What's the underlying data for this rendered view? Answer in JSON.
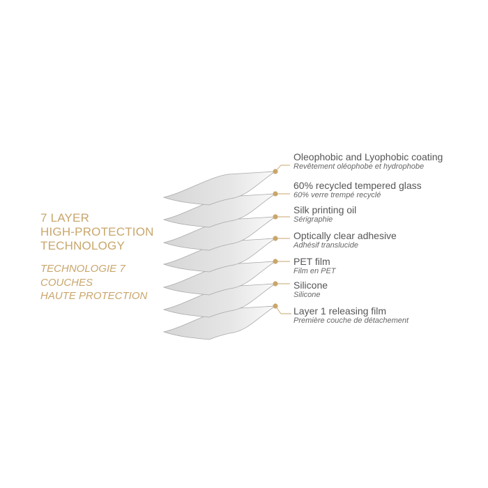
{
  "heading": {
    "title_lines": [
      "7 LAYER",
      "HIGH-PROTECTION",
      "TECHNOLOGY"
    ],
    "subtitle_lines": [
      "TECHNOLOGIE 7",
      "COUCHES",
      "HAUTE PROTECTION"
    ]
  },
  "layers": [
    {
      "en": "Oleophobic and Lyophobic coating",
      "fr": "Revêtement oléophobe et hydrophobe"
    },
    {
      "en": "60% recycled tempered glass",
      "fr": "60% verre trempé recyclé"
    },
    {
      "en": "Silk printing oil",
      "fr": "Sérigraphie"
    },
    {
      "en": "Optically clear adhesive",
      "fr": "Adhésif translucide"
    },
    {
      "en": "PET film",
      "fr": "Film en PET"
    },
    {
      "en": "Silicone",
      "fr": "Silicone"
    },
    {
      "en": "Layer 1 releasing film",
      "fr": "Première couche de détachement"
    }
  ],
  "colors": {
    "accent": "#c9a66b",
    "layer_fill": "#e4e4e4",
    "layer_stroke": "#a8a8a8",
    "text": "#555555"
  }
}
